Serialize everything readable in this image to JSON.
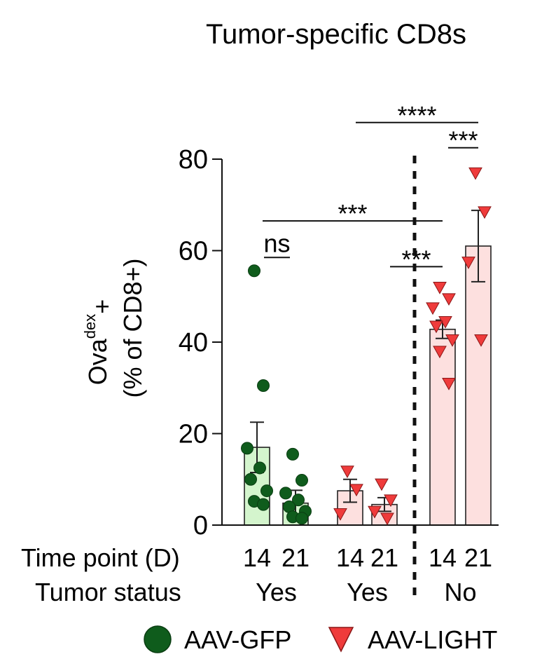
{
  "chart_data": {
    "type": "bar",
    "title": "Tumor-specific CD8s",
    "ylabel_main": "Ova",
    "ylabel_sup": "dex",
    "ylabel_sub": "+",
    "ylabel_line2": "(% of CD8+)",
    "ylim": [
      0,
      80
    ],
    "yticks": [
      "0",
      "20",
      "40",
      "60",
      "80"
    ],
    "row_labels": {
      "time": "Time point (D)",
      "status": "Tumor status"
    },
    "categories": [
      {
        "time": "14",
        "group": "AAV-GFP",
        "mean": 17.0,
        "sem": 5.5,
        "points": [
          55.6,
          30.5,
          16.8,
          12.5,
          10.0,
          7.5,
          5.2,
          4.5
        ]
      },
      {
        "time": "21",
        "group": "AAV-GFP",
        "mean": 4.8,
        "sem": 2.8,
        "points": [
          15.5,
          9.8,
          7.0,
          5.5,
          4.0,
          3.0,
          1.8,
          1.5
        ]
      },
      {
        "time": "14",
        "group": "AAV-LIGHT",
        "mean": 7.5,
        "sem": 2.5,
        "points": [
          11.8,
          7.8,
          2.5
        ]
      },
      {
        "time": "21",
        "group": "AAV-LIGHT",
        "mean": 4.5,
        "sem": 1.5,
        "points": [
          9.0,
          5.5,
          3.0,
          1.5
        ]
      },
      {
        "time": "14",
        "group": "AAV-LIGHT",
        "mean": 42.8,
        "sem": 2.0,
        "points": [
          52.0,
          49.5,
          47.5,
          44.5,
          43.5,
          40.5,
          38.0,
          31.0
        ]
      },
      {
        "time": "21",
        "group": "AAV-LIGHT",
        "mean": 61.0,
        "sem": 7.8,
        "points": [
          77.0,
          68.5,
          57.5,
          40.5
        ]
      }
    ],
    "tumor_status": [
      {
        "label": "Yes",
        "categories": [
          0,
          1
        ]
      },
      {
        "label": "Yes",
        "categories": [
          2,
          3
        ]
      },
      {
        "label": "No",
        "categories": [
          4,
          5
        ]
      }
    ],
    "significance": [
      {
        "label": "****",
        "from": 2,
        "to": 5,
        "y": 88.0
      },
      {
        "label": "***",
        "from": 4,
        "to": 5,
        "y": 82.5
      },
      {
        "label": "***",
        "from": 0,
        "to": 4,
        "y": 66.5
      },
      {
        "label": "ns",
        "from": 0,
        "to": 1,
        "y": 58.5
      },
      {
        "label": "***",
        "from": 3,
        "to": 4,
        "y": 56.5
      }
    ],
    "legend": [
      {
        "label": "AAV-GFP",
        "marker": "circle",
        "color": "#0f5c1c"
      },
      {
        "label": "AAV-LIGHT",
        "marker": "triangle-down",
        "color": "#ef3b3b"
      }
    ],
    "colors": {
      "AAV-GFP": {
        "marker": "#0f5c1c",
        "bar": "#d4f5cd"
      },
      "AAV-LIGHT": {
        "marker": "#ef3b3b",
        "bar": "#fde0df"
      }
    }
  }
}
